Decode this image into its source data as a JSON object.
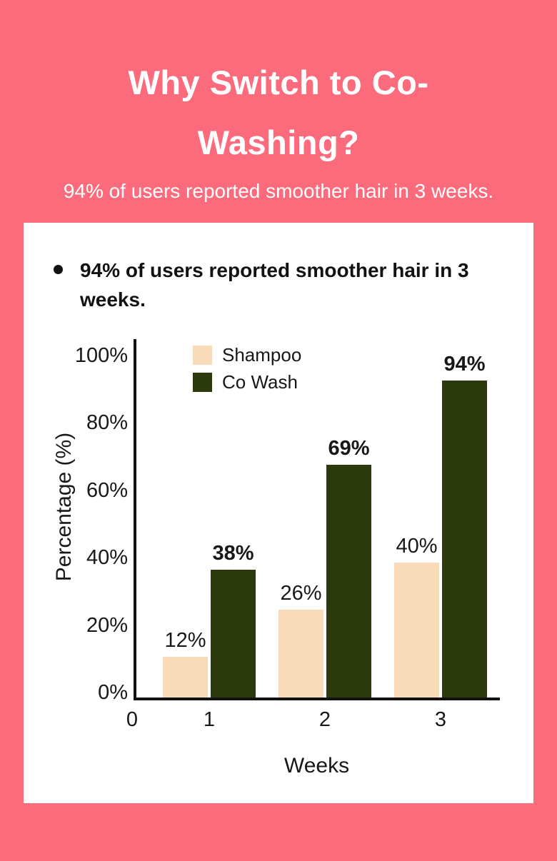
{
  "colors": {
    "background": "#FC6B7C",
    "card": "#FFFFFF",
    "text_dark": "#181818",
    "text_light": "#FFFFFF",
    "shampoo_bar": "#F8DBB8",
    "cowash_bar": "#2B390D"
  },
  "header": {
    "title": "Why Switch to Co-Washing?",
    "subtitle": "94% of users reported smoother hair in 3 weeks."
  },
  "card": {
    "bullet_text": "94% of users reported smoother hair in 3 weeks."
  },
  "chart_data": {
    "type": "bar",
    "title": "",
    "xlabel": "Weeks",
    "ylabel": "Percentage (%)",
    "categories": [
      "1",
      "2",
      "3"
    ],
    "x_origin_label": "0",
    "y_ticks": [
      "0%",
      "20%",
      "40%",
      "60%",
      "80%",
      "100%"
    ],
    "y_tick_values": [
      0,
      20,
      40,
      60,
      80,
      100
    ],
    "ylim": [
      0,
      100
    ],
    "grid": false,
    "legend_position": "top-left-inside",
    "series": [
      {
        "name": "Shampoo",
        "color": "#F8DBB8",
        "values": [
          12,
          26,
          40
        ],
        "labels": [
          "12%",
          "26%",
          "40%"
        ],
        "label_bold": false
      },
      {
        "name": "Co Wash",
        "color": "#2B390D",
        "values": [
          38,
          69,
          94
        ],
        "labels": [
          "38%",
          "69%",
          "94%"
        ],
        "label_bold": true
      }
    ]
  }
}
